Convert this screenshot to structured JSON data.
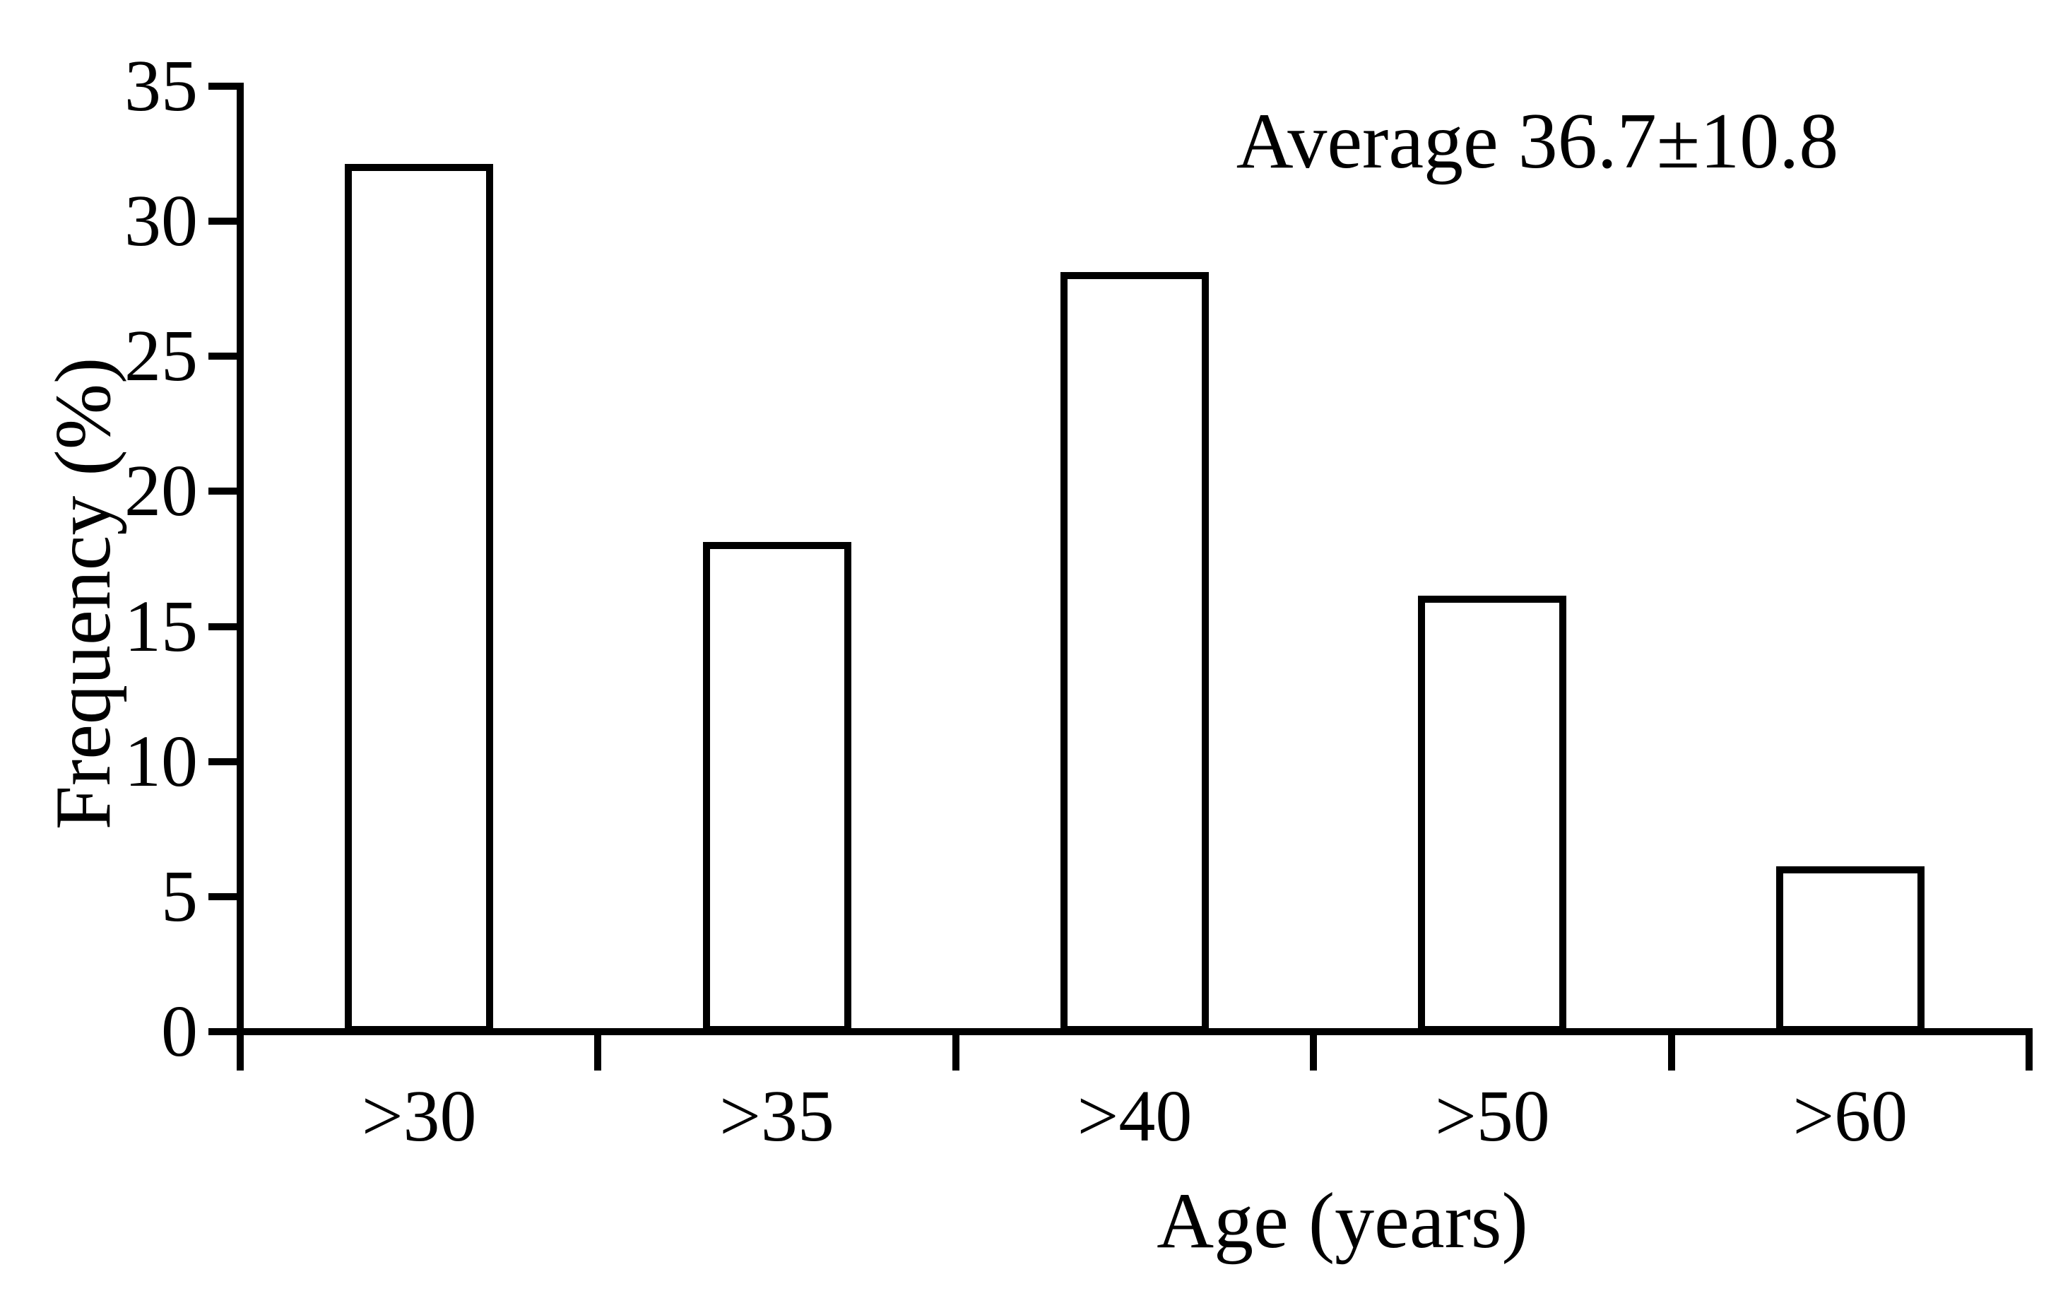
{
  "chart_data": {
    "type": "bar",
    "title": "",
    "categories": [
      ">30",
      ">35",
      ">40",
      ">50",
      ">60"
    ],
    "values": [
      32,
      18,
      28,
      16,
      6
    ],
    "xlabel": "Age (years)",
    "ylabel": "Frequency (%)",
    "annotation": "Average 36.7±10.8",
    "ylim": [
      0,
      35
    ],
    "yticks": [
      0,
      5,
      10,
      15,
      20,
      25,
      30,
      35
    ],
    "grid": false,
    "legend_position": "none",
    "bar_fill": "#ffffff",
    "bar_stroke": "#000000",
    "axis_color": "#000000",
    "text_color": "#000000",
    "background": "#ffffff"
  }
}
